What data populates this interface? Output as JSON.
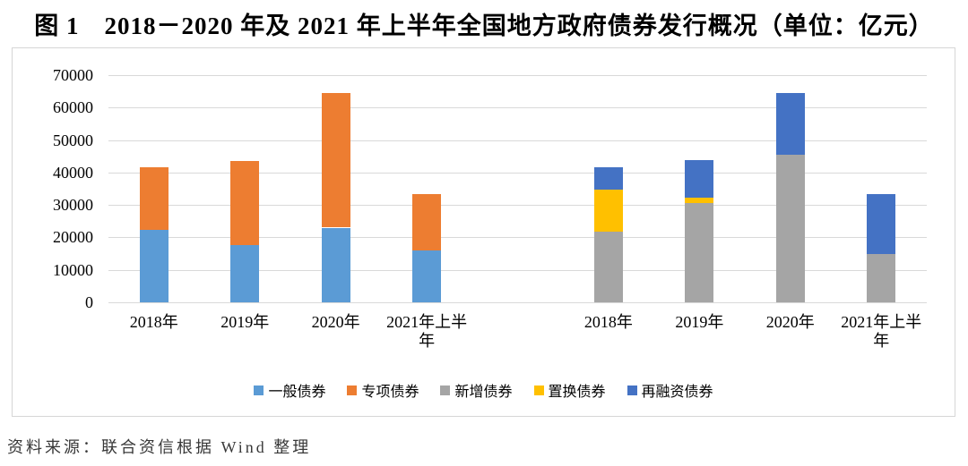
{
  "title": "图 1　2018－2020 年及 2021 年上半年全国地方政府债券发行概况（单位：亿元）",
  "source": "资料来源：联合资信根据 Wind 整理",
  "chart_data": {
    "type": "bar",
    "stacked": true,
    "unit": "亿元",
    "ylim": [
      0,
      70000
    ],
    "ytick_step": 10000,
    "yticks": [
      0,
      10000,
      20000,
      30000,
      40000,
      50000,
      60000,
      70000
    ],
    "grid": true,
    "legend_position": "bottom",
    "legend": [
      {
        "id": "general-bond",
        "label": "一般债券",
        "color": "#5B9BD5"
      },
      {
        "id": "special-bond",
        "label": "专项债券",
        "color": "#ED7D31"
      },
      {
        "id": "new-bond",
        "label": "新增债券",
        "color": "#A5A5A5"
      },
      {
        "id": "swap-bond",
        "label": "置换债券",
        "color": "#FFC000"
      },
      {
        "id": "refinancing-bond",
        "label": "再融资债券",
        "color": "#4472C4"
      }
    ],
    "groups": [
      {
        "categories": [
          "2018年",
          "2019年",
          "2020年",
          "2021年上半年"
        ],
        "series": [
          {
            "id": "general-bond",
            "name": "一般债券",
            "color": "#5B9BD5",
            "values": [
              22200,
              17700,
              23000,
              16000
            ]
          },
          {
            "id": "special-bond",
            "name": "专项债券",
            "color": "#ED7D31",
            "values": [
              19400,
              25900,
              41400,
              17400
            ]
          }
        ]
      },
      {
        "categories": [
          "2018年",
          "2019年",
          "2020年",
          "2021年上半年"
        ],
        "series": [
          {
            "id": "new-bond",
            "name": "新增债券",
            "color": "#A5A5A5",
            "values": [
              21700,
              30700,
              45500,
              14800
            ]
          },
          {
            "id": "swap-bond",
            "name": "置换债券",
            "color": "#FFC000",
            "values": [
              13100,
              1500,
              0,
              0
            ]
          },
          {
            "id": "refinancing-bond",
            "name": "再融资债券",
            "color": "#4472C4",
            "values": [
              6800,
              11500,
              18900,
              18600
            ]
          }
        ]
      }
    ]
  }
}
